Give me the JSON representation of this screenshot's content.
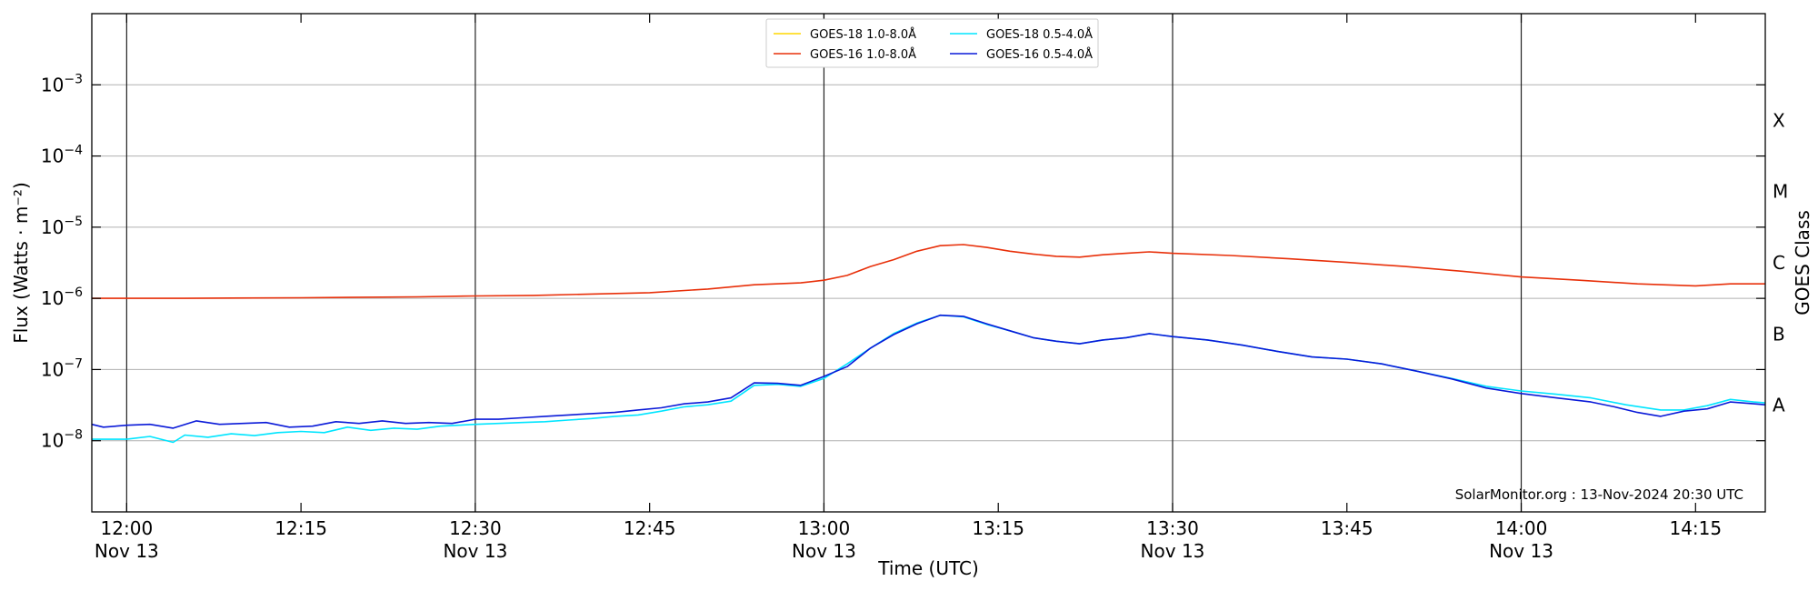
{
  "chart_data": {
    "type": "line",
    "title": "",
    "xlabel": "Time (UTC)",
    "ylabel": "Flux (Watts · m⁻²)",
    "right_ylabel": "GOES Class",
    "yscale": "log",
    "ylim": [
      1e-09,
      0.01
    ],
    "xlim": [
      "11:57",
      "14:21"
    ],
    "grid": "horizontal",
    "legend_position": "top-center",
    "watermark": "SolarMonitor.org : 13-Nov-2024 20:30 UTC",
    "y_ticks": [
      {
        "value": 1e-08,
        "base": "10",
        "exp": "−8"
      },
      {
        "value": 1e-07,
        "base": "10",
        "exp": "−7"
      },
      {
        "value": 1e-06,
        "base": "10",
        "exp": "−6"
      },
      {
        "value": 1e-05,
        "base": "10",
        "exp": "−5"
      },
      {
        "value": 0.0001,
        "base": "10",
        "exp": "−4"
      },
      {
        "value": 0.001,
        "base": "10",
        "exp": "−3"
      }
    ],
    "x_ticks": [
      {
        "time": "12:00",
        "label": "12:00",
        "date": "Nov 13"
      },
      {
        "time": "12:15",
        "label": "12:15",
        "date": ""
      },
      {
        "time": "12:30",
        "label": "12:30",
        "date": "Nov 13"
      },
      {
        "time": "12:45",
        "label": "12:45",
        "date": ""
      },
      {
        "time": "13:00",
        "label": "13:00",
        "date": "Nov 13"
      },
      {
        "time": "13:15",
        "label": "13:15",
        "date": ""
      },
      {
        "time": "13:30",
        "label": "13:30",
        "date": "Nov 13"
      },
      {
        "time": "13:45",
        "label": "13:45",
        "date": ""
      },
      {
        "time": "14:00",
        "label": "14:00",
        "date": "Nov 13"
      },
      {
        "time": "14:15",
        "label": "14:15",
        "date": ""
      }
    ],
    "vlines": [
      "12:00",
      "12:30",
      "13:00",
      "13:30",
      "14:00"
    ],
    "goes_classes": [
      {
        "label": "A",
        "value": 3.16e-08
      },
      {
        "label": "B",
        "value": 3.16e-07
      },
      {
        "label": "C",
        "value": 3.16e-06
      },
      {
        "label": "M",
        "value": 3.16e-05
      },
      {
        "label": "X",
        "value": 0.000316
      }
    ],
    "series": [
      {
        "name": "GOES-18 1.0-8.0Å",
        "color": "#ffd700",
        "points": []
      },
      {
        "name": "GOES-18 0.5-4.0Å",
        "color": "#00e5ff",
        "points": [
          [
            "11:57",
            1.05e-08
          ],
          [
            "12:00",
            1.05e-08
          ],
          [
            "12:02",
            1.15e-08
          ],
          [
            "12:04",
            9.5e-09
          ],
          [
            "12:05",
            1.2e-08
          ],
          [
            "12:07",
            1.12e-08
          ],
          [
            "12:09",
            1.25e-08
          ],
          [
            "12:11",
            1.18e-08
          ],
          [
            "12:13",
            1.3e-08
          ],
          [
            "12:15",
            1.35e-08
          ],
          [
            "12:17",
            1.3e-08
          ],
          [
            "12:19",
            1.55e-08
          ],
          [
            "12:21",
            1.4e-08
          ],
          [
            "12:23",
            1.5e-08
          ],
          [
            "12:25",
            1.45e-08
          ],
          [
            "12:27",
            1.6e-08
          ],
          [
            "12:30",
            1.7e-08
          ],
          [
            "12:32",
            1.75e-08
          ],
          [
            "12:34",
            1.8e-08
          ],
          [
            "12:36",
            1.85e-08
          ],
          [
            "12:38",
            1.95e-08
          ],
          [
            "12:40",
            2.05e-08
          ],
          [
            "12:42",
            2.2e-08
          ],
          [
            "12:44",
            2.3e-08
          ],
          [
            "12:46",
            2.6e-08
          ],
          [
            "12:48",
            3e-08
          ],
          [
            "12:50",
            3.2e-08
          ],
          [
            "12:52",
            3.6e-08
          ],
          [
            "12:54",
            6e-08
          ],
          [
            "12:56",
            6.2e-08
          ],
          [
            "12:58",
            5.8e-08
          ],
          [
            "13:00",
            7.5e-08
          ],
          [
            "13:02",
            1.2e-07
          ],
          [
            "13:04",
            2e-07
          ],
          [
            "13:06",
            3.2e-07
          ],
          [
            "13:08",
            4.5e-07
          ],
          [
            "13:10",
            5.8e-07
          ],
          [
            "13:12",
            5.5e-07
          ],
          [
            "13:14",
            4.3e-07
          ],
          [
            "13:16",
            3.5e-07
          ],
          [
            "13:18",
            2.8e-07
          ],
          [
            "13:20",
            2.5e-07
          ],
          [
            "13:22",
            2.3e-07
          ],
          [
            "13:24",
            2.6e-07
          ],
          [
            "13:26",
            2.8e-07
          ],
          [
            "13:28",
            3.2e-07
          ],
          [
            "13:30",
            2.9e-07
          ],
          [
            "13:33",
            2.6e-07
          ],
          [
            "13:36",
            2.2e-07
          ],
          [
            "13:39",
            1.8e-07
          ],
          [
            "13:42",
            1.5e-07
          ],
          [
            "13:45",
            1.4e-07
          ],
          [
            "13:48",
            1.2e-07
          ],
          [
            "13:51",
            9.5e-08
          ],
          [
            "13:54",
            7.5e-08
          ],
          [
            "13:57",
            5.8e-08
          ],
          [
            "14:00",
            5e-08
          ],
          [
            "14:03",
            4.5e-08
          ],
          [
            "14:06",
            4e-08
          ],
          [
            "14:09",
            3.2e-08
          ],
          [
            "14:12",
            2.7e-08
          ],
          [
            "14:14",
            2.7e-08
          ],
          [
            "14:16",
            3.1e-08
          ],
          [
            "14:18",
            3.8e-08
          ],
          [
            "14:20",
            3.5e-08
          ],
          [
            "14:21",
            3.4e-08
          ]
        ]
      },
      {
        "name": "GOES-16 1.0-8.0Å",
        "color": "#e8300a",
        "points": [
          [
            "11:57",
            1e-06
          ],
          [
            "12:05",
            1e-06
          ],
          [
            "12:15",
            1.02e-06
          ],
          [
            "12:25",
            1.05e-06
          ],
          [
            "12:30",
            1.08e-06
          ],
          [
            "12:35",
            1.1e-06
          ],
          [
            "12:40",
            1.15e-06
          ],
          [
            "12:45",
            1.2e-06
          ],
          [
            "12:50",
            1.35e-06
          ],
          [
            "12:54",
            1.55e-06
          ],
          [
            "12:58",
            1.65e-06
          ],
          [
            "13:00",
            1.8e-06
          ],
          [
            "13:02",
            2.1e-06
          ],
          [
            "13:04",
            2.8e-06
          ],
          [
            "13:06",
            3.5e-06
          ],
          [
            "13:08",
            4.6e-06
          ],
          [
            "13:10",
            5.5e-06
          ],
          [
            "13:12",
            5.7e-06
          ],
          [
            "13:14",
            5.2e-06
          ],
          [
            "13:16",
            4.6e-06
          ],
          [
            "13:18",
            4.2e-06
          ],
          [
            "13:20",
            3.9e-06
          ],
          [
            "13:22",
            3.8e-06
          ],
          [
            "13:24",
            4.1e-06
          ],
          [
            "13:26",
            4.3e-06
          ],
          [
            "13:28",
            4.5e-06
          ],
          [
            "13:30",
            4.3e-06
          ],
          [
            "13:35",
            4e-06
          ],
          [
            "13:40",
            3.6e-06
          ],
          [
            "13:45",
            3.2e-06
          ],
          [
            "13:50",
            2.8e-06
          ],
          [
            "13:55",
            2.4e-06
          ],
          [
            "14:00",
            2e-06
          ],
          [
            "14:05",
            1.8e-06
          ],
          [
            "14:10",
            1.6e-06
          ],
          [
            "14:15",
            1.5e-06
          ],
          [
            "14:18",
            1.6e-06
          ],
          [
            "14:21",
            1.6e-06
          ]
        ]
      },
      {
        "name": "GOES-16 0.5-4.0Å",
        "color": "#0a1ad8",
        "points": [
          [
            "11:57",
            1.7e-08
          ],
          [
            "11:58",
            1.55e-08
          ],
          [
            "12:00",
            1.65e-08
          ],
          [
            "12:02",
            1.7e-08
          ],
          [
            "12:04",
            1.5e-08
          ],
          [
            "12:06",
            1.9e-08
          ],
          [
            "12:08",
            1.7e-08
          ],
          [
            "12:10",
            1.75e-08
          ],
          [
            "12:12",
            1.8e-08
          ],
          [
            "12:14",
            1.55e-08
          ],
          [
            "12:16",
            1.6e-08
          ],
          [
            "12:18",
            1.85e-08
          ],
          [
            "12:20",
            1.75e-08
          ],
          [
            "12:22",
            1.9e-08
          ],
          [
            "12:24",
            1.75e-08
          ],
          [
            "12:26",
            1.8e-08
          ],
          [
            "12:28",
            1.75e-08
          ],
          [
            "12:30",
            2e-08
          ],
          [
            "12:32",
            2e-08
          ],
          [
            "12:34",
            2.1e-08
          ],
          [
            "12:36",
            2.2e-08
          ],
          [
            "12:38",
            2.3e-08
          ],
          [
            "12:40",
            2.4e-08
          ],
          [
            "12:42",
            2.5e-08
          ],
          [
            "12:44",
            2.7e-08
          ],
          [
            "12:46",
            2.9e-08
          ],
          [
            "12:48",
            3.3e-08
          ],
          [
            "12:50",
            3.5e-08
          ],
          [
            "12:52",
            4e-08
          ],
          [
            "12:54",
            6.5e-08
          ],
          [
            "12:56",
            6.4e-08
          ],
          [
            "12:58",
            6e-08
          ],
          [
            "13:00",
            8e-08
          ],
          [
            "13:02",
            1.1e-07
          ],
          [
            "13:04",
            2e-07
          ],
          [
            "13:06",
            3.1e-07
          ],
          [
            "13:08",
            4.4e-07
          ],
          [
            "13:10",
            5.8e-07
          ],
          [
            "13:12",
            5.6e-07
          ],
          [
            "13:14",
            4.4e-07
          ],
          [
            "13:16",
            3.5e-07
          ],
          [
            "13:18",
            2.8e-07
          ],
          [
            "13:20",
            2.5e-07
          ],
          [
            "13:22",
            2.3e-07
          ],
          [
            "13:24",
            2.6e-07
          ],
          [
            "13:26",
            2.8e-07
          ],
          [
            "13:28",
            3.2e-07
          ],
          [
            "13:30",
            2.9e-07
          ],
          [
            "13:33",
            2.6e-07
          ],
          [
            "13:36",
            2.2e-07
          ],
          [
            "13:39",
            1.8e-07
          ],
          [
            "13:42",
            1.5e-07
          ],
          [
            "13:45",
            1.4e-07
          ],
          [
            "13:48",
            1.2e-07
          ],
          [
            "13:51",
            9.5e-08
          ],
          [
            "13:54",
            7.4e-08
          ],
          [
            "13:57",
            5.5e-08
          ],
          [
            "14:00",
            4.6e-08
          ],
          [
            "14:03",
            4e-08
          ],
          [
            "14:06",
            3.5e-08
          ],
          [
            "14:08",
            3e-08
          ],
          [
            "14:10",
            2.5e-08
          ],
          [
            "14:12",
            2.2e-08
          ],
          [
            "14:14",
            2.6e-08
          ],
          [
            "14:16",
            2.8e-08
          ],
          [
            "14:18",
            3.5e-08
          ],
          [
            "14:20",
            3.3e-08
          ],
          [
            "14:21",
            3.2e-08
          ]
        ]
      }
    ]
  }
}
